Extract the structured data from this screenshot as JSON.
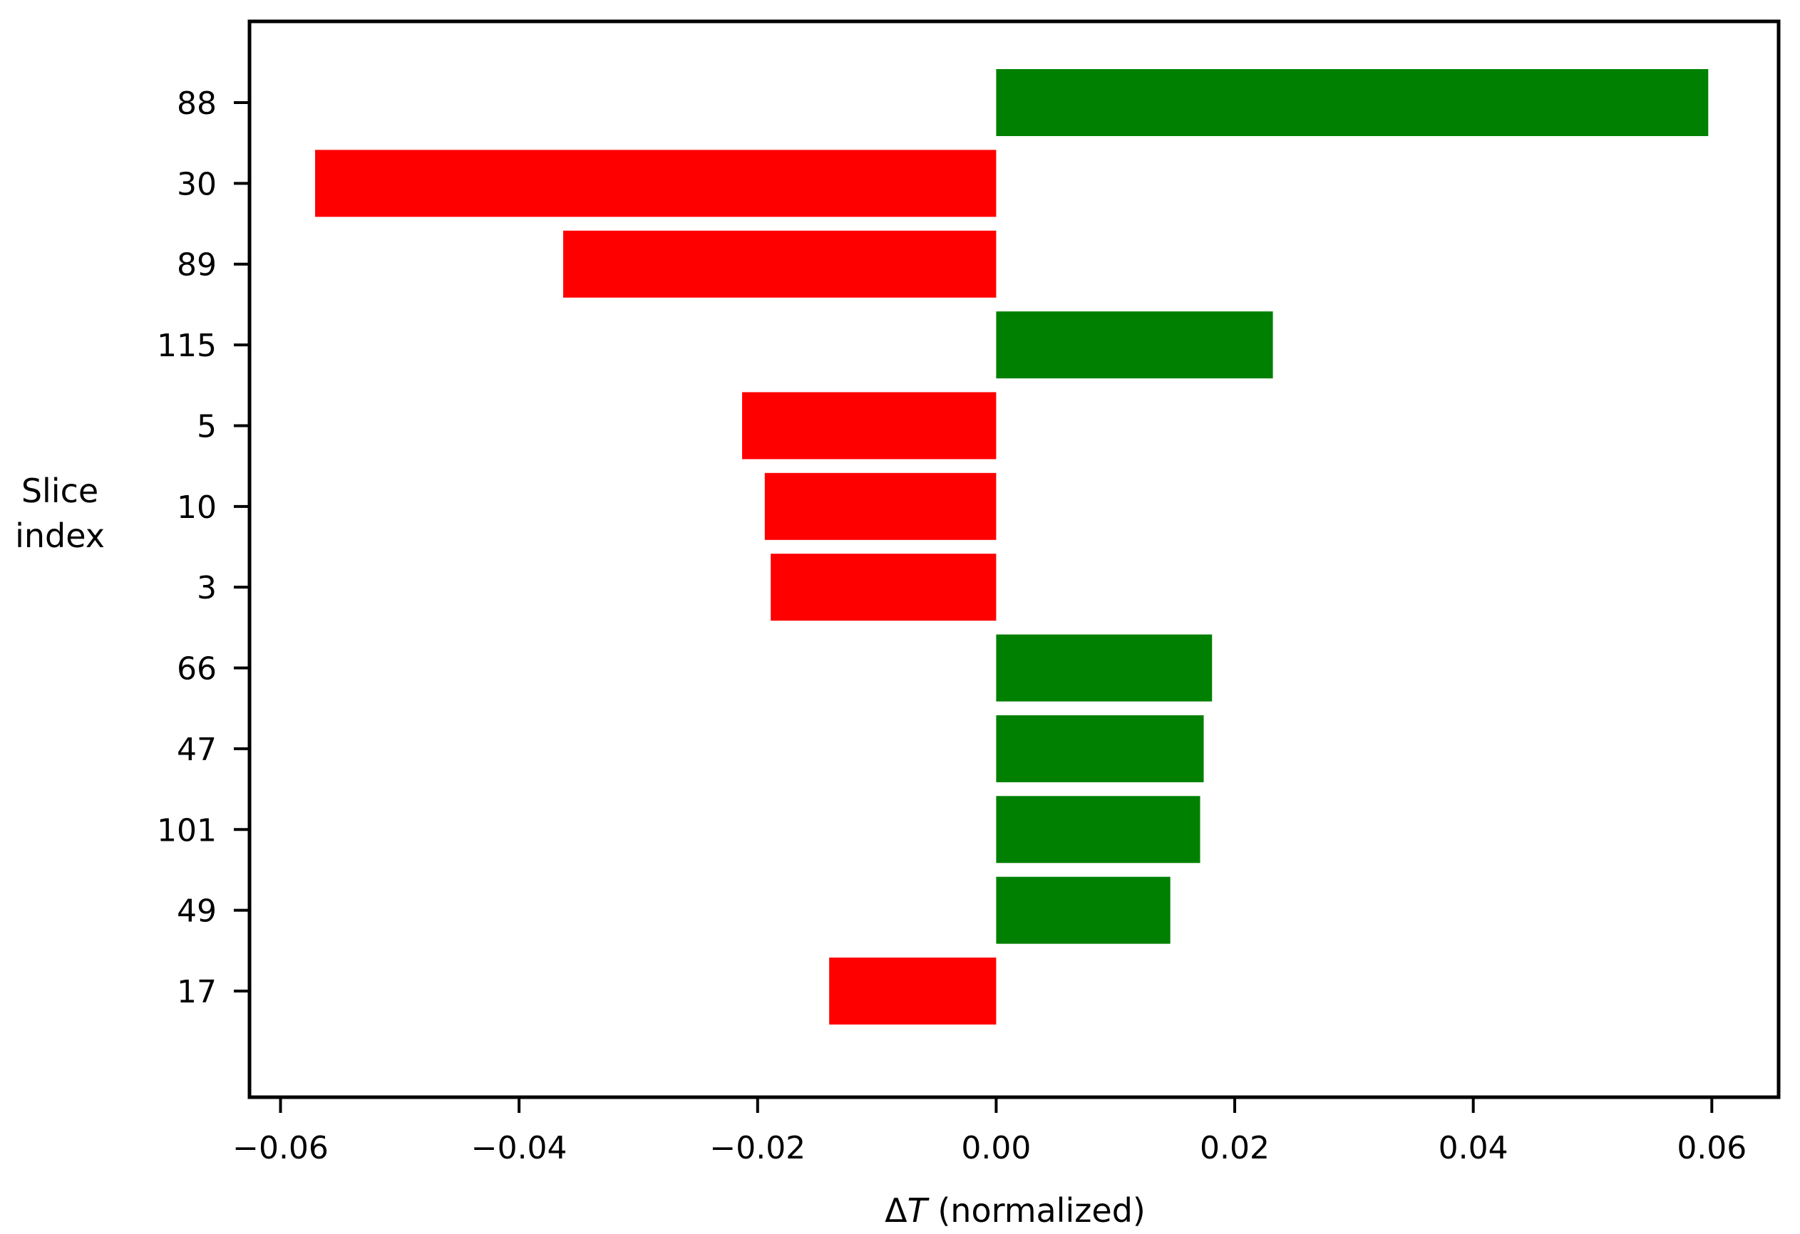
{
  "chart_data": {
    "type": "bar",
    "orientation": "horizontal",
    "title": "",
    "xlabel": "ΔT (normalized)",
    "xlabel_parts": {
      "symbol_prefix": "Δ",
      "symbol_italic": "T",
      "rest": " (normalized)"
    },
    "ylabel": "Slice index",
    "ylabel_lines": [
      "Slice",
      "index"
    ],
    "categories": [
      "88",
      "30",
      "89",
      "115",
      "5",
      "10",
      "3",
      "66",
      "47",
      "101",
      "49",
      "17"
    ],
    "values": [
      0.0597,
      -0.0571,
      -0.0363,
      0.0232,
      -0.0213,
      -0.0194,
      -0.0189,
      0.0181,
      0.0174,
      0.0171,
      0.0146,
      -0.014
    ],
    "xlim": [
      -0.0626,
      0.0656
    ],
    "xticks": [
      -0.06,
      -0.04,
      -0.02,
      0.0,
      0.02,
      0.04,
      0.06
    ],
    "xtick_labels": [
      "−0.06",
      "−0.04",
      "−0.02",
      "0.00",
      "0.02",
      "0.04",
      "0.06"
    ],
    "grid": false,
    "legend": null,
    "colors": {
      "positive": "#008000",
      "negative": "#ff0000",
      "axis": "#000000",
      "background": "#ffffff"
    }
  }
}
